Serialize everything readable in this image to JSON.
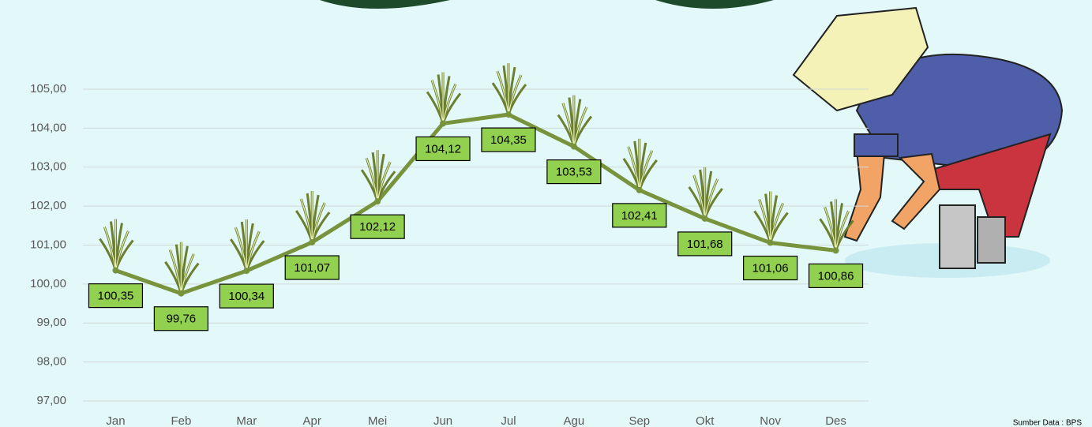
{
  "chart_data": {
    "type": "line",
    "categories": [
      "Jan",
      "Feb",
      "Mar",
      "Apr",
      "Mei",
      "Jun",
      "Jul",
      "Agu",
      "Sep",
      "Okt",
      "Nov",
      "Des"
    ],
    "values": [
      100.35,
      99.76,
      100.34,
      101.07,
      102.12,
      104.12,
      104.35,
      103.53,
      102.41,
      101.68,
      101.06,
      100.86
    ],
    "value_labels": [
      "100,35",
      "99,76",
      "100,34",
      "101,07",
      "102,12",
      "104,12",
      "104,35",
      "103,53",
      "102,41",
      "101,68",
      "101,06",
      "100,86"
    ],
    "color": "#77933c",
    "label_color": "#92d050",
    "ylim": [
      97,
      105
    ],
    "yticks": [
      {
        "value": 97,
        "label": "97,00"
      },
      {
        "value": 98,
        "label": "98,00"
      },
      {
        "value": 99,
        "label": "99,00"
      },
      {
        "value": 100,
        "label": "100,00"
      },
      {
        "value": 101,
        "label": "101,00"
      },
      {
        "value": 102,
        "label": "102,00"
      },
      {
        "value": 103,
        "label": "103,00"
      },
      {
        "value": 104,
        "label": "104,00"
      },
      {
        "value": 105,
        "label": "105,00"
      }
    ],
    "grid": true,
    "source": "Sumber Data : BPS"
  }
}
